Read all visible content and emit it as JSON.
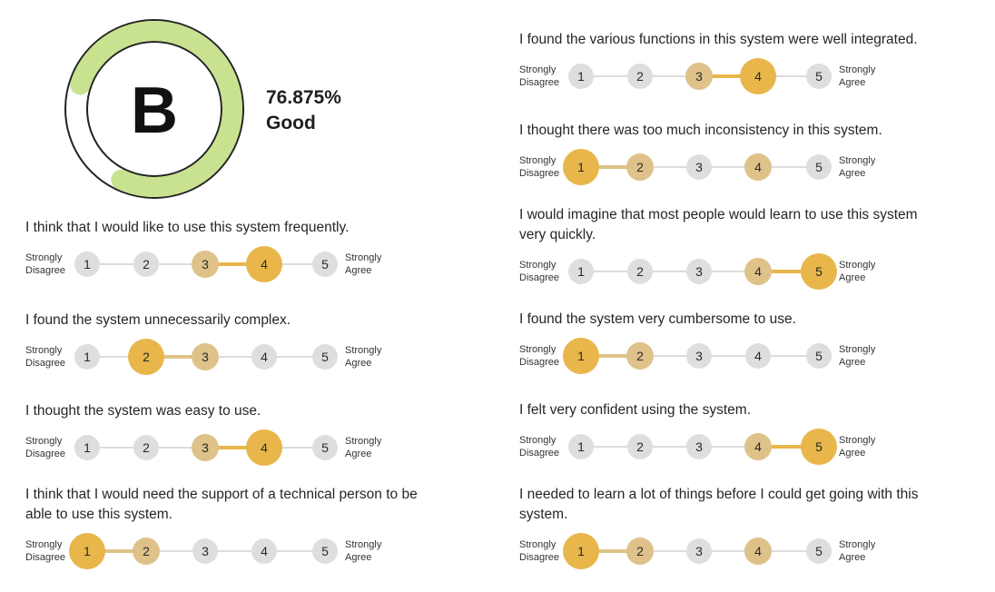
{
  "score": {
    "grade": "B",
    "percent": "76.875%",
    "rating": "Good",
    "progress": 0.77,
    "colors": {
      "ring": "#c8e28f",
      "outline": "#222222"
    }
  },
  "scale": {
    "left_label": [
      "Strongly",
      "Disagree"
    ],
    "right_label": [
      "Strongly",
      "Agree"
    ],
    "options": [
      "1",
      "2",
      "3",
      "4",
      "5"
    ],
    "colors": {
      "selected": "#e8b64a",
      "highlight": "#dfc28a",
      "normal": "#dedede"
    }
  },
  "questions": [
    {
      "text": [
        "I think that I would like to use this system frequently."
      ],
      "selected": 4,
      "highlight": [
        3
      ]
    },
    {
      "text": [
        "I found the system unnecessarily complex."
      ],
      "selected": 2,
      "highlight": [
        3
      ]
    },
    {
      "text": [
        "I thought the system was easy to use."
      ],
      "selected": 4,
      "highlight": [
        3
      ]
    },
    {
      "text": [
        "I think that I would need the support of a technical person to be",
        "able to use this system."
      ],
      "selected": 1,
      "highlight": [
        2
      ]
    },
    {
      "text": [
        "I found the various functions in this system were well integrated."
      ],
      "selected": 4,
      "highlight": [
        3
      ]
    },
    {
      "text": [
        "I thought there was too much inconsistency in this system."
      ],
      "selected": 1,
      "highlight": [
        2,
        4
      ]
    },
    {
      "text": [
        "I would imagine that most people would learn to use this system",
        "very quickly."
      ],
      "selected": 5,
      "highlight": [
        4
      ]
    },
    {
      "text": [
        "I found the system very cumbersome to use."
      ],
      "selected": 1,
      "highlight": [
        2
      ]
    },
    {
      "text": [
        "I felt very confident using the system."
      ],
      "selected": 5,
      "highlight": [
        4
      ]
    },
    {
      "text": [
        "I needed to learn a lot of things before I could get going with this",
        "system."
      ],
      "selected": 1,
      "highlight": [
        2,
        4
      ]
    }
  ]
}
